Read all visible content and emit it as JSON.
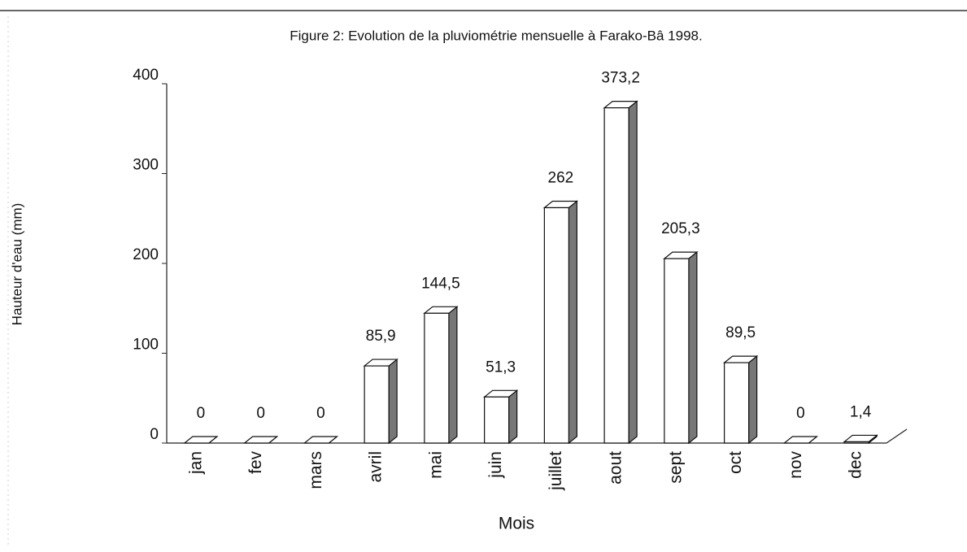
{
  "chart_data": {
    "type": "bar",
    "title": "Figure 2: Evolution de la pluviométrie mensuelle à Farako-Bâ 1998.",
    "x_label": "Mois",
    "y_label": "Hauteur d'eau (mm)",
    "categories": [
      "jan",
      "fev",
      "mars",
      "avril",
      "mai",
      "juin",
      "juillet",
      "aout",
      "sept",
      "oct",
      "nov",
      "dec"
    ],
    "values": [
      0,
      0,
      0,
      85.9,
      144.5,
      51.3,
      262,
      373.2,
      205.3,
      89.5,
      0,
      1.4
    ],
    "value_labels": [
      "0",
      "0",
      "0",
      "85,9",
      "144,5",
      "51,3",
      "262",
      "373,2",
      "205,3",
      "89,5",
      "0",
      "1,4"
    ],
    "color": "#ffffff",
    "ylim": [
      0,
      400
    ],
    "yticks": [
      0,
      100,
      200,
      300,
      400
    ],
    "grid": false
  }
}
